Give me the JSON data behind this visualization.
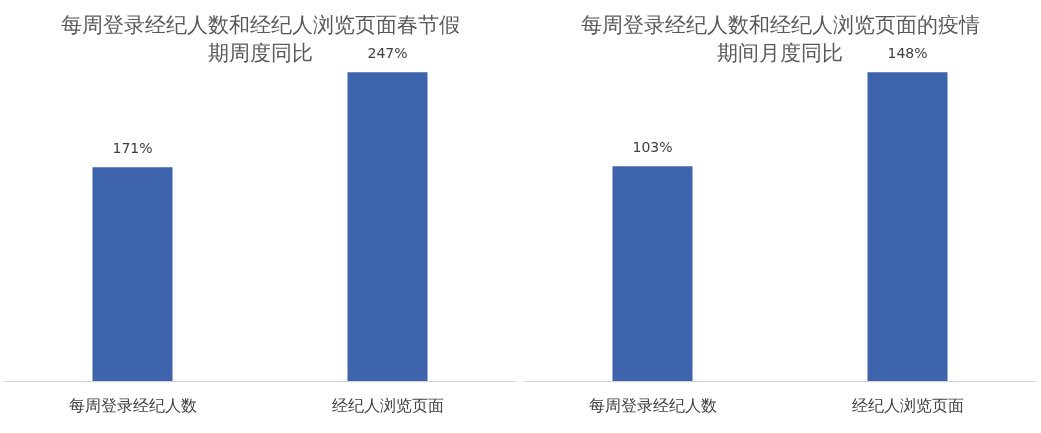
{
  "chart_data": [
    {
      "type": "bar",
      "title": "每周登录经纪人数和经纪人浏览页面春节假期周度同比",
      "categories": [
        "每周登录经纪人数",
        "经纪人浏览页面"
      ],
      "values": [
        171,
        247
      ],
      "value_labels": [
        "171%",
        "247%"
      ],
      "color": "#3d64ad"
    },
    {
      "type": "bar",
      "title": "每周登录经纪人数和经纪人浏览页面的疫情期间月度同比",
      "categories": [
        "每周登录经纪人数",
        "经纪人浏览页面"
      ],
      "values": [
        103,
        148
      ],
      "value_labels": [
        "103%",
        "148%"
      ],
      "color": "#3d64ad"
    }
  ]
}
